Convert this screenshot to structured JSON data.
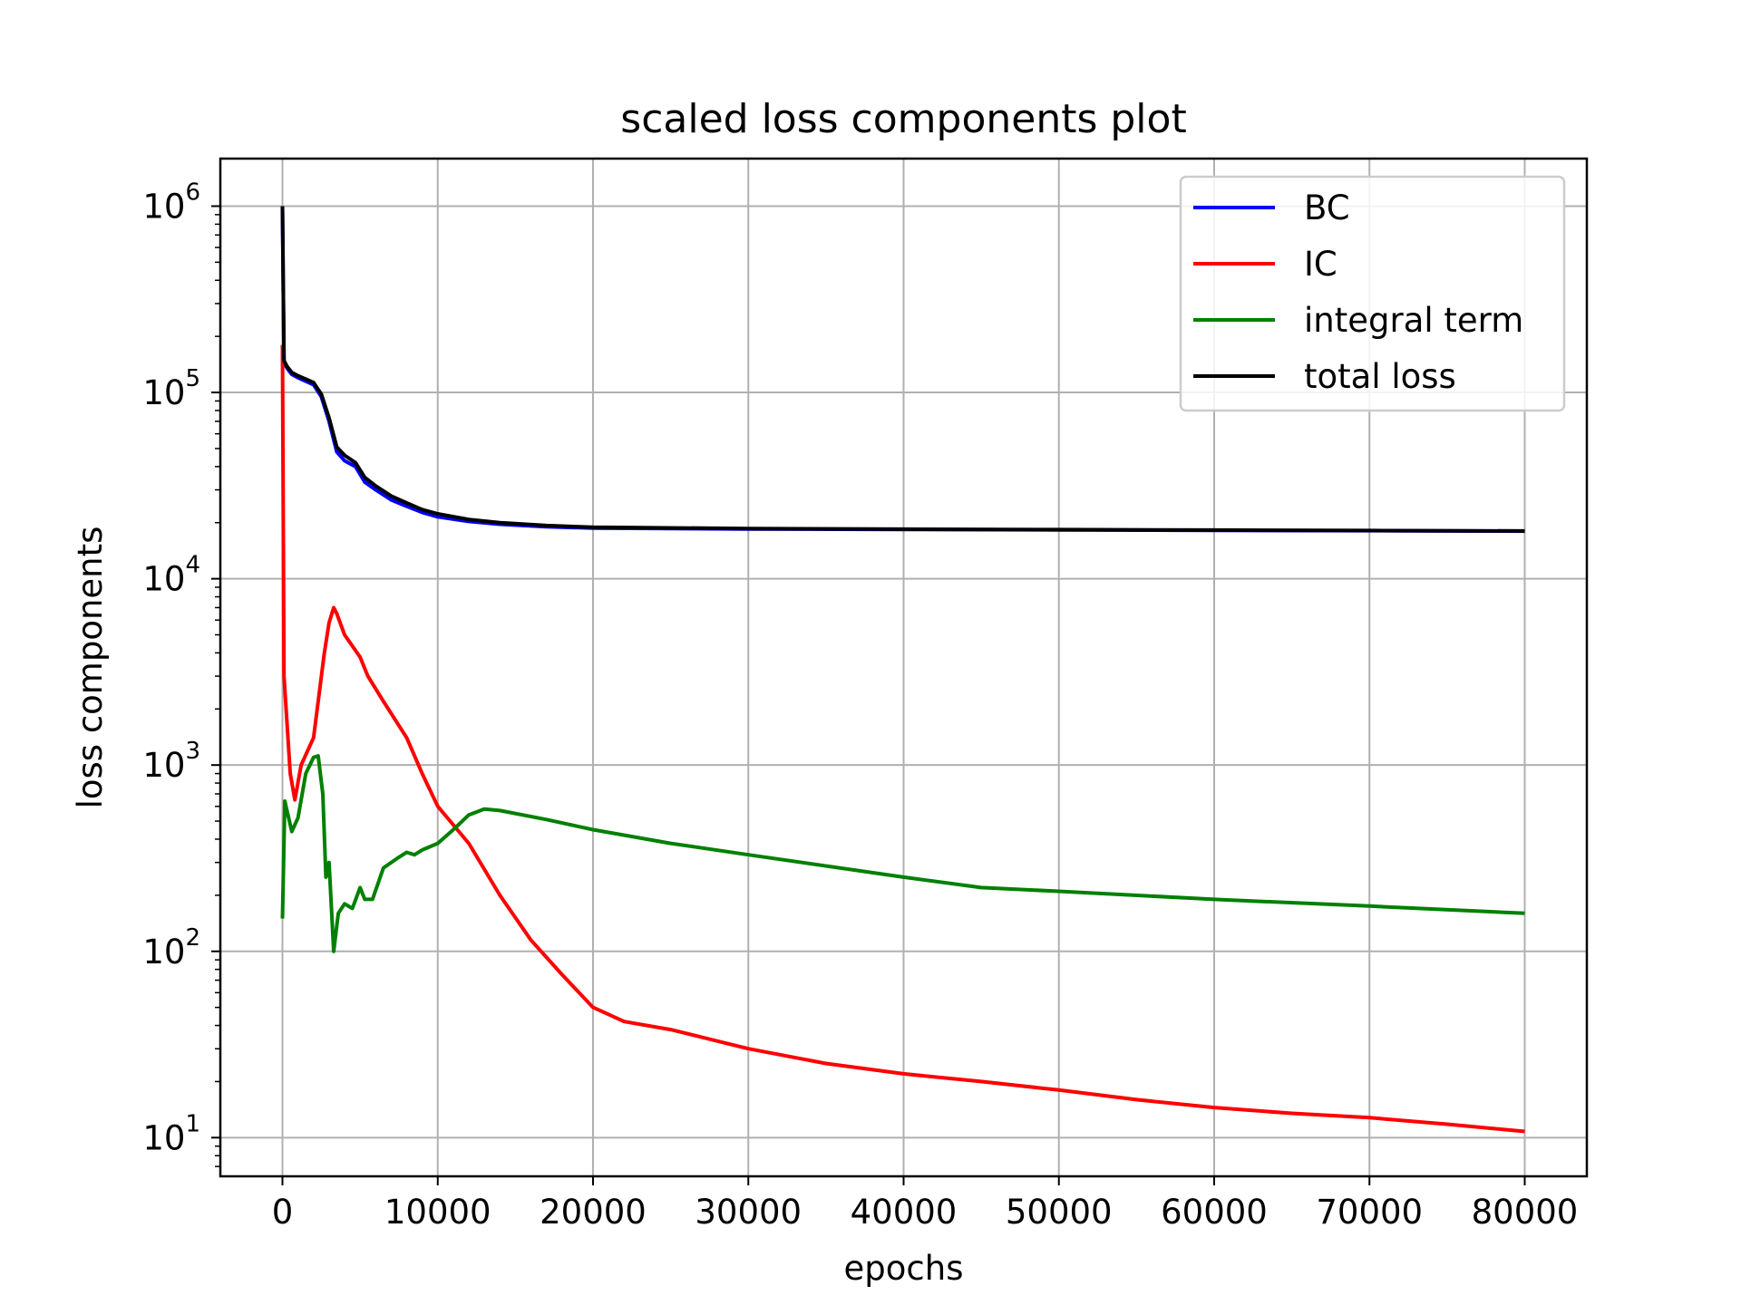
{
  "chart_data": {
    "type": "line",
    "title": "scaled loss components plot",
    "xlabel": "epochs",
    "ylabel": "loss components",
    "xlim": [
      -4000,
      84000
    ],
    "ylim": [
      6.2,
      1800000
    ],
    "yscale": "log",
    "grid": true,
    "legend_position": "top-right",
    "x_ticks": [
      0,
      10000,
      20000,
      30000,
      40000,
      50000,
      60000,
      70000,
      80000
    ],
    "x_tick_labels": [
      "0",
      "10000",
      "20000",
      "30000",
      "40000",
      "50000",
      "60000",
      "70000",
      "80000"
    ],
    "y_ticks": [
      10,
      100,
      1000,
      10000,
      100000,
      1000000
    ],
    "y_tick_labels": [
      {
        "base": "10",
        "exp": "1"
      },
      {
        "base": "10",
        "exp": "2"
      },
      {
        "base": "10",
        "exp": "3"
      },
      {
        "base": "10",
        "exp": "4"
      },
      {
        "base": "10",
        "exp": "5"
      },
      {
        "base": "10",
        "exp": "6"
      }
    ],
    "series": [
      {
        "name": "BC",
        "color": "#0000ff",
        "x": [
          0,
          100,
          300,
          600,
          1000,
          2000,
          2500,
          3000,
          3500,
          4000,
          4700,
          5300,
          6000,
          7000,
          8000,
          9000,
          10000,
          12000,
          14000,
          17000,
          20000,
          30000,
          40000,
          50000,
          60000,
          70000,
          80000
        ],
        "y": [
          1000000,
          145000,
          135000,
          125000,
          120000,
          110000,
          95000,
          70000,
          48000,
          43000,
          40000,
          33000,
          30000,
          26500,
          24500,
          22700,
          21500,
          20300,
          19600,
          19000,
          18700,
          18500,
          18400,
          18300,
          18200,
          18100,
          18000
        ]
      },
      {
        "name": "IC",
        "color": "#ff0000",
        "x": [
          0,
          100,
          500,
          800,
          1200,
          2000,
          2700,
          3000,
          3300,
          3500,
          4000,
          5000,
          5500,
          6500,
          8000,
          9000,
          10000,
          12000,
          14000,
          16000,
          18000,
          20000,
          22000,
          25000,
          30000,
          35000,
          40000,
          45000,
          50000,
          55000,
          60000,
          65000,
          70000,
          75000,
          80000
        ],
        "y": [
          180000,
          3000,
          900,
          650,
          1000,
          1400,
          4000,
          5800,
          7000,
          6500,
          5000,
          3800,
          3000,
          2200,
          1400,
          900,
          600,
          380,
          200,
          115,
          75,
          50,
          42,
          38,
          30,
          25,
          22,
          20,
          18,
          16,
          14.5,
          13.5,
          12.8,
          11.8,
          10.8
        ]
      },
      {
        "name": "integral term",
        "color": "#008000",
        "x": [
          0,
          150,
          600,
          1000,
          1500,
          2000,
          2300,
          2600,
          2800,
          3000,
          3300,
          3600,
          4000,
          4500,
          5000,
          5300,
          5800,
          6500,
          7000,
          7500,
          8000,
          8500,
          9000,
          10000,
          11000,
          12000,
          13000,
          14000,
          17000,
          20000,
          25000,
          30000,
          40000,
          45000,
          50000,
          60000,
          70000,
          80000
        ],
        "y": [
          150,
          640,
          440,
          520,
          900,
          1100,
          1120,
          700,
          250,
          300,
          100,
          160,
          180,
          170,
          220,
          190,
          190,
          280,
          300,
          320,
          340,
          330,
          350,
          380,
          450,
          540,
          580,
          570,
          510,
          450,
          380,
          330,
          250,
          220,
          210,
          190,
          175,
          160
        ]
      },
      {
        "name": "total loss",
        "color": "#000000",
        "x": [
          0,
          100,
          300,
          600,
          1000,
          2000,
          2500,
          3000,
          3500,
          4000,
          4700,
          5300,
          6000,
          7000,
          8000,
          9000,
          10000,
          12000,
          14000,
          17000,
          20000,
          30000,
          40000,
          50000,
          60000,
          70000,
          80000
        ],
        "y": [
          1000000,
          148000,
          138000,
          128000,
          123000,
          113000,
          98000,
          73000,
          51000,
          46000,
          42000,
          35000,
          31500,
          27800,
          25500,
          23500,
          22300,
          20800,
          20000,
          19300,
          18900,
          18600,
          18450,
          18350,
          18250,
          18150,
          18050
        ]
      }
    ]
  }
}
